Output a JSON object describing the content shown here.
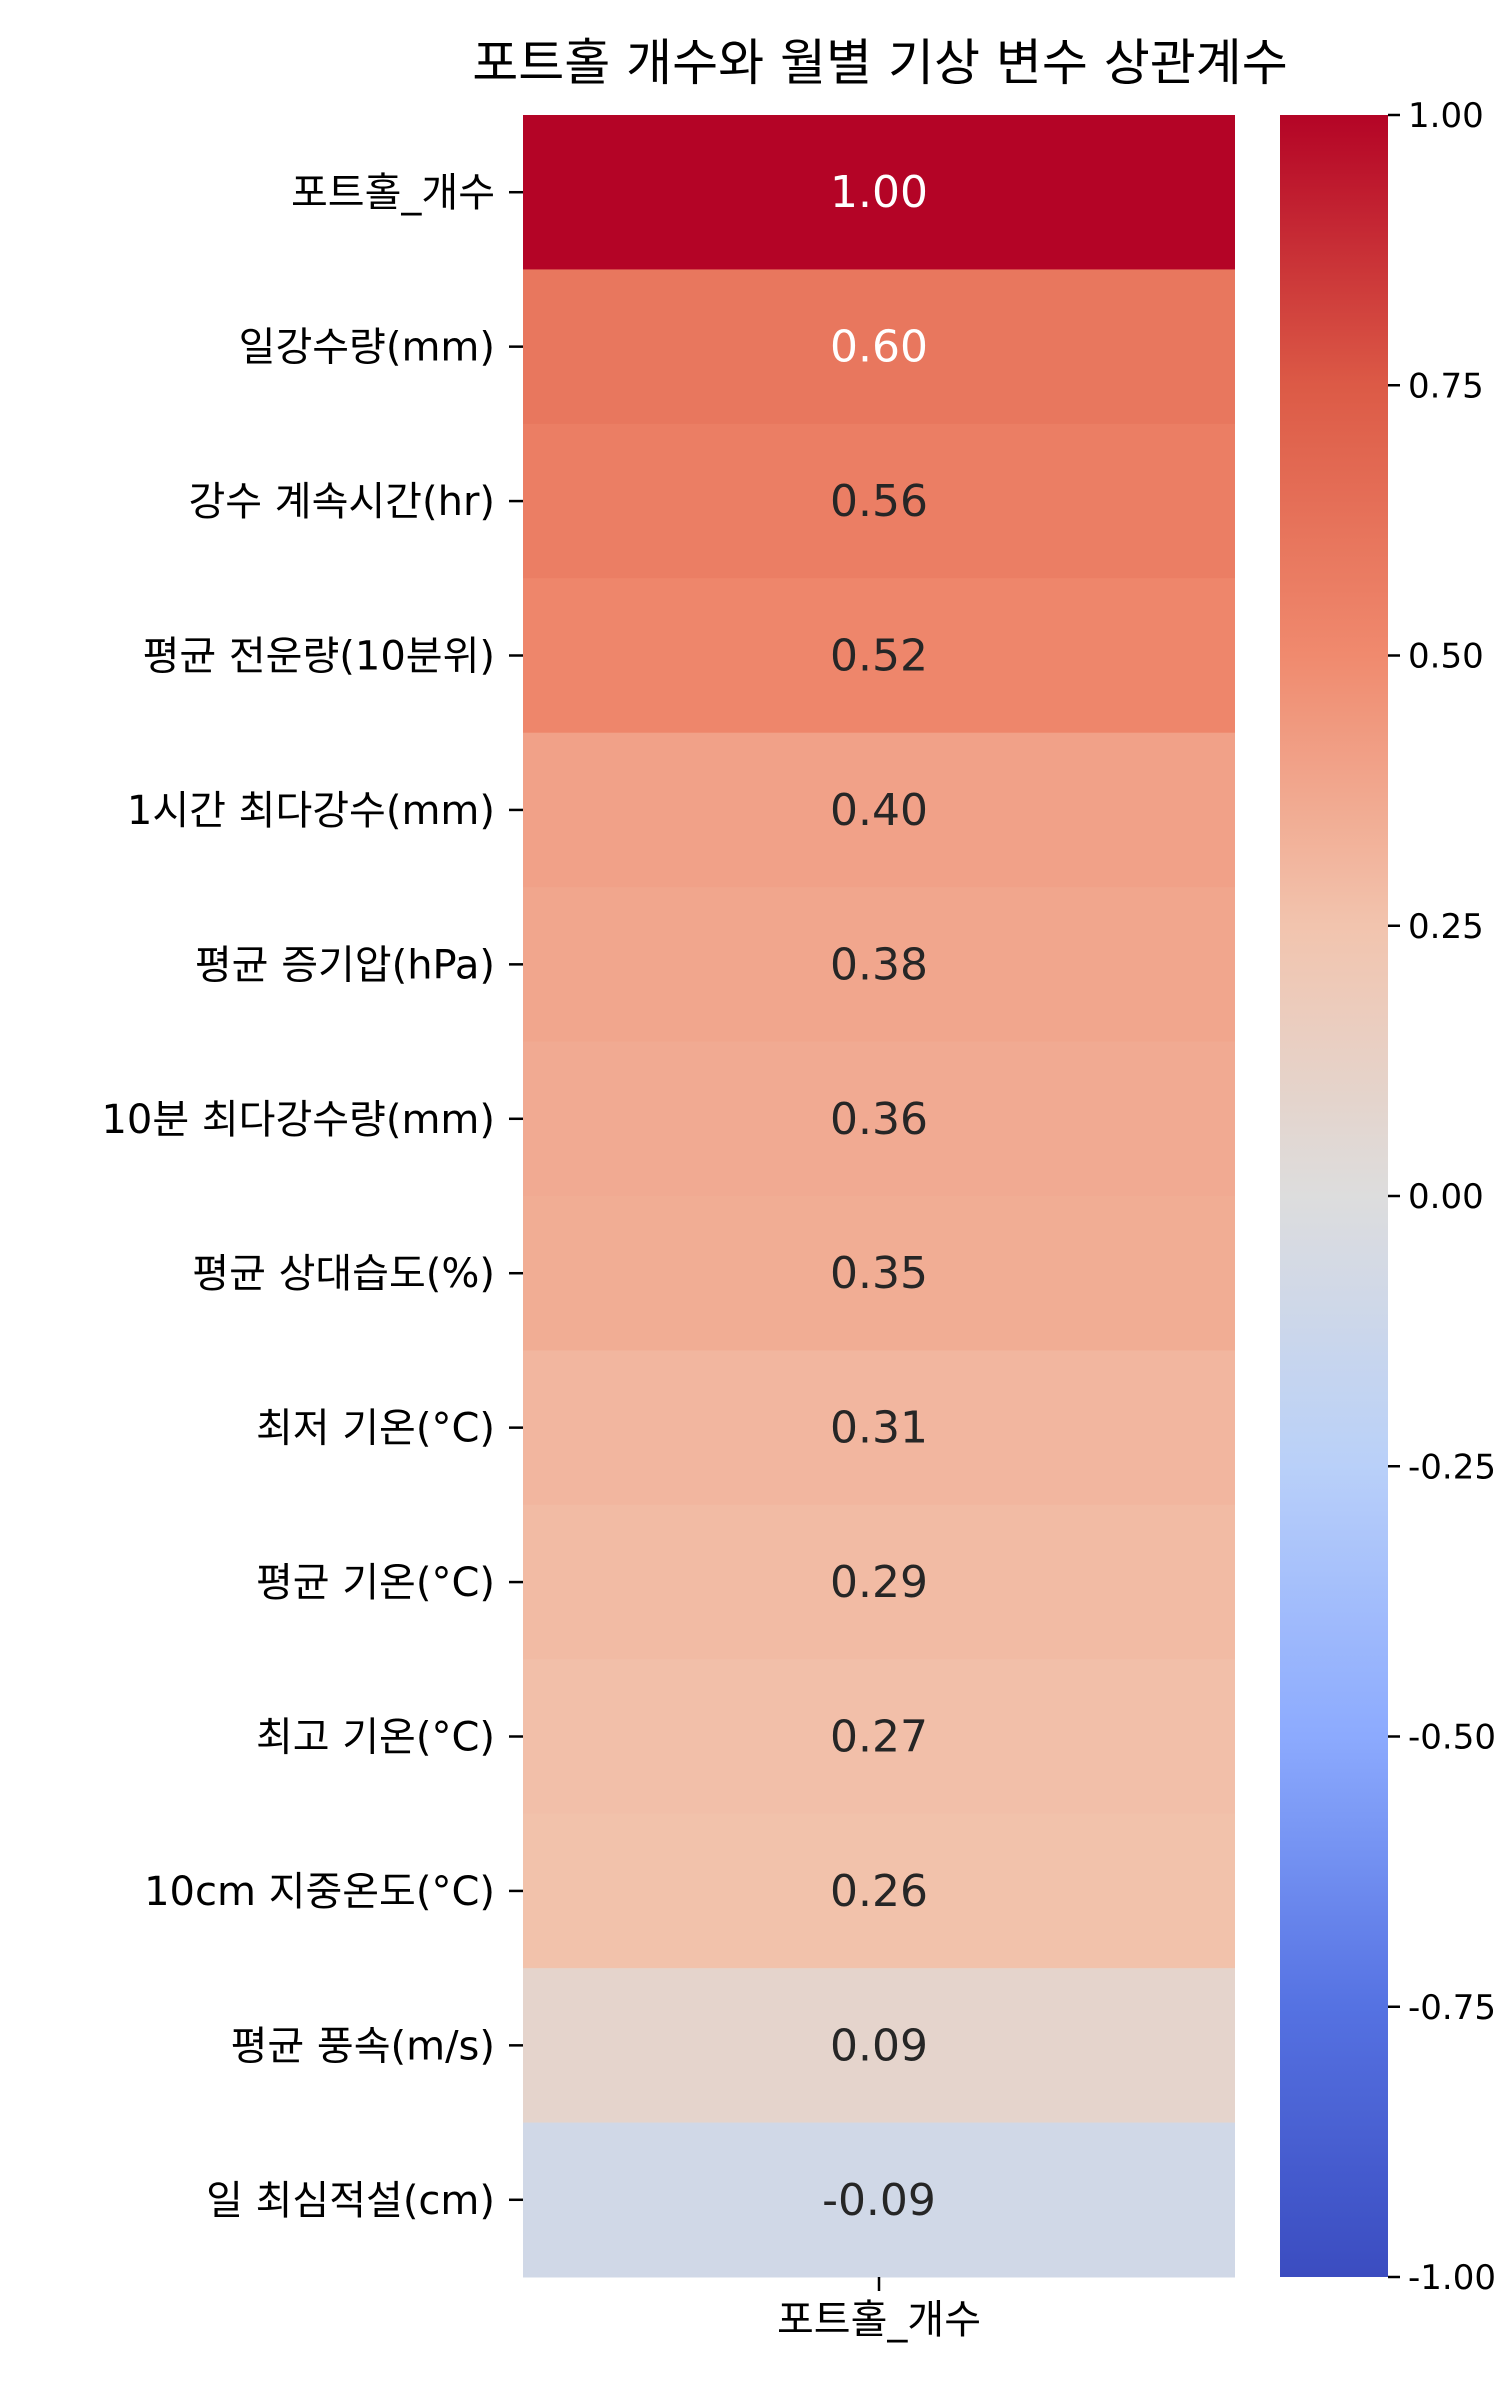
{
  "chart_data": {
    "type": "heatmap",
    "title": "포트홀 개수와 월별 기상 변수 상관계수",
    "rows": [
      "포트홀_개수",
      "일강수량(mm)",
      "강수 계속시간(hr)",
      "평균 전운량(10분위)",
      "1시간 최다강수(mm)",
      "평균 증기압(hPa)",
      "10분 최다강수량(mm)",
      "평균 상대습도(%)",
      "최저 기온(°C)",
      "평균 기온(°C)",
      "최고 기온(°C)",
      "10cm 지중온도(°C)",
      "평균 풍속(m/s)",
      "일 최심적설(cm)"
    ],
    "columns": [
      "포트홀_개수"
    ],
    "values": [
      1.0,
      0.6,
      0.56,
      0.52,
      0.4,
      0.38,
      0.36,
      0.35,
      0.31,
      0.29,
      0.27,
      0.26,
      0.09,
      -0.09
    ],
    "annotations": [
      "1.00",
      "0.60",
      "0.56",
      "0.52",
      "0.40",
      "0.38",
      "0.36",
      "0.35",
      "0.31",
      "0.29",
      "0.27",
      "0.26",
      "0.09",
      "-0.09"
    ],
    "colormap": "coolwarm",
    "vmin": -1.0,
    "vmax": 1.0,
    "colorbar_ticks": [
      1.0,
      0.75,
      0.5,
      0.25,
      0.0,
      -0.25,
      -0.5,
      -0.75,
      -1.0
    ],
    "colorbar_tick_labels": [
      "1.00",
      "0.75",
      "0.50",
      "0.25",
      "0.00",
      "-0.25",
      "-0.50",
      "-0.75",
      "-1.00"
    ],
    "colorbar_position": "right"
  }
}
